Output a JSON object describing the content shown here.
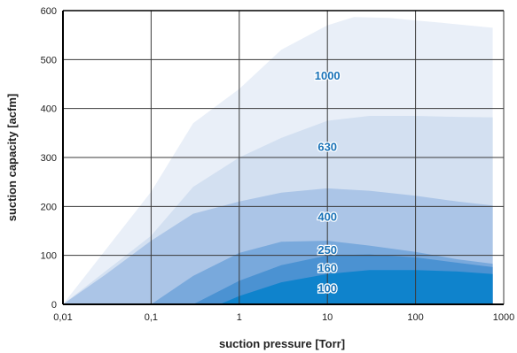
{
  "chart_data": {
    "type": "area",
    "title": "",
    "xlabel": "suction pressure [Torr]",
    "ylabel": "suction capacity [acfm]",
    "xscale": "log",
    "xlim": [
      0.01,
      1000
    ],
    "ylim": [
      0,
      600
    ],
    "x_ticks": [
      0.01,
      0.1,
      1,
      10,
      100,
      1000
    ],
    "x_tick_labels": [
      "0,01",
      "0,1",
      "1",
      "10",
      "100",
      "1000"
    ],
    "y_ticks": [
      0,
      100,
      200,
      300,
      400,
      500,
      600
    ],
    "y_tick_labels": [
      "0",
      "100",
      "200",
      "300",
      "400",
      "500",
      "600"
    ],
    "grid": true,
    "series": [
      {
        "name": "1000",
        "color": "#e9eff8",
        "points": [
          [
            0.01,
            0
          ],
          [
            0.1,
            230
          ],
          [
            0.3,
            370
          ],
          [
            1,
            440
          ],
          [
            3,
            520
          ],
          [
            10,
            570
          ],
          [
            20,
            587
          ],
          [
            50,
            585
          ],
          [
            100,
            580
          ],
          [
            200,
            575
          ],
          [
            750,
            565
          ]
        ]
      },
      {
        "name": "630",
        "color": "#d3e0f1",
        "points": [
          [
            0.01,
            0
          ],
          [
            0.1,
            140
          ],
          [
            0.3,
            240
          ],
          [
            1,
            300
          ],
          [
            3,
            340
          ],
          [
            10,
            375
          ],
          [
            30,
            385
          ],
          [
            100,
            385
          ],
          [
            300,
            383
          ],
          [
            750,
            382
          ]
        ]
      },
      {
        "name": "400",
        "color": "#abc5e7",
        "points": [
          [
            0.01,
            0
          ],
          [
            0.03,
            60
          ],
          [
            0.1,
            130
          ],
          [
            0.3,
            185
          ],
          [
            1,
            210
          ],
          [
            3,
            228
          ],
          [
            10,
            237
          ],
          [
            30,
            232
          ],
          [
            100,
            222
          ],
          [
            300,
            210
          ],
          [
            750,
            202
          ]
        ]
      },
      {
        "name": "250",
        "color": "#79a9dc",
        "points": [
          [
            0.1,
            0
          ],
          [
            0.3,
            58
          ],
          [
            1,
            105
          ],
          [
            3,
            128
          ],
          [
            10,
            130
          ],
          [
            30,
            120
          ],
          [
            100,
            107
          ],
          [
            300,
            92
          ],
          [
            750,
            83
          ]
        ]
      },
      {
        "name": "160",
        "color": "#4b92d2",
        "points": [
          [
            0.3,
            0
          ],
          [
            1,
            48
          ],
          [
            3,
            80
          ],
          [
            10,
            100
          ],
          [
            30,
            102
          ],
          [
            100,
            96
          ],
          [
            300,
            85
          ],
          [
            750,
            76
          ]
        ]
      },
      {
        "name": "100",
        "color": "#0f83cc",
        "points": [
          [
            0.6,
            0
          ],
          [
            1,
            17
          ],
          [
            3,
            45
          ],
          [
            10,
            62
          ],
          [
            30,
            70
          ],
          [
            100,
            70
          ],
          [
            300,
            67
          ],
          [
            750,
            62
          ]
        ]
      }
    ],
    "labels": [
      {
        "text": "1000",
        "x": 10,
        "y": 468
      },
      {
        "text": "630",
        "x": 10,
        "y": 323
      },
      {
        "text": "400",
        "x": 10,
        "y": 180
      },
      {
        "text": "250",
        "x": 10,
        "y": 112
      },
      {
        "text": "160",
        "x": 10,
        "y": 75
      },
      {
        "text": "100",
        "x": 10,
        "y": 33
      }
    ]
  }
}
